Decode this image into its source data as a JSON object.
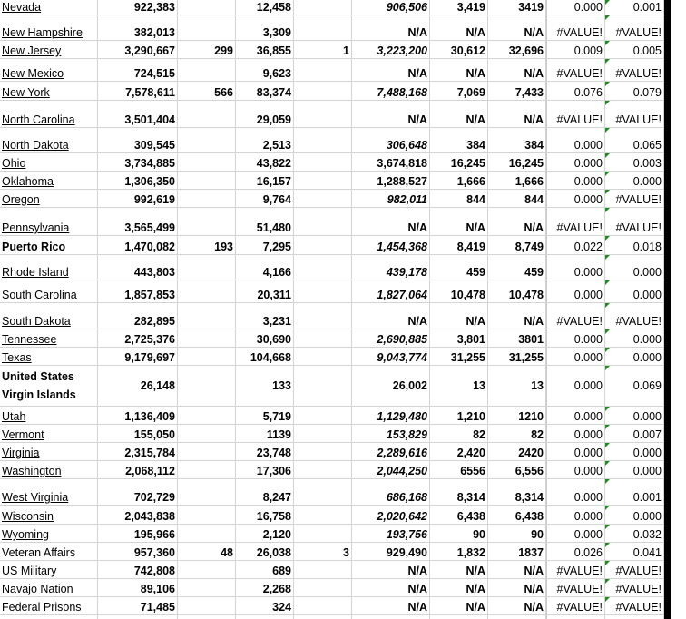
{
  "sheet": {
    "rows": [
      [
        "Nevada",
        "922,383",
        "",
        "12,458",
        "",
        "906,506",
        "3,419",
        "3419",
        "0.000",
        "0.001"
      ],
      [
        "New Hampshire",
        "382,013",
        "",
        "3,309",
        "",
        "N/A",
        "N/A",
        "N/A",
        "#VALUE!",
        "#VALUE!"
      ],
      [
        "New Jersey",
        "3,290,667",
        "299",
        "36,855",
        "1",
        "3,223,200",
        "30,612",
        "32,696",
        "0.009",
        "0.005"
      ],
      [
        "New Mexico",
        "724,515",
        "",
        "9,623",
        "",
        "N/A",
        "N/A",
        "N/A",
        "#VALUE!",
        "#VALUE!"
      ],
      [
        "New York",
        "7,578,611",
        "566",
        "83,374",
        "",
        "7,488,168",
        "7,069",
        "7,433",
        "0.076",
        "0.079"
      ],
      [
        "North Carolina",
        "3,501,404",
        "",
        "29,059",
        "",
        "N/A",
        "N/A",
        "N/A",
        "#VALUE!",
        "#VALUE!"
      ],
      [
        "North Dakota",
        "309,545",
        "",
        "2,513",
        "",
        "306,648",
        "384",
        "384",
        "0.000",
        "0.065"
      ],
      [
        "Ohio",
        "3,734,885",
        "",
        "43,822",
        "",
        "3,674,818",
        "16,245",
        "16,245",
        "0.000",
        "0.003"
      ],
      [
        "Oklahoma",
        "1,306,350",
        "",
        "16,157",
        "",
        "1,288,527",
        "1,666",
        "1,666",
        "0.000",
        "0.000"
      ],
      [
        "Oregon",
        "992,619",
        "",
        "9,764",
        "",
        "982,011",
        "844",
        "844",
        "0.000",
        "#VALUE!"
      ],
      [
        "Pennsylvania",
        "3,565,499",
        "",
        "51,480",
        "",
        "N/A",
        "N/A",
        "N/A",
        "#VALUE!",
        "#VALUE!"
      ],
      [
        "Puerto Rico",
        "1,470,082",
        "193",
        "7,295",
        "",
        "1,454,368",
        "8,419",
        "8,749",
        "0.022",
        "0.018"
      ],
      [
        "Rhode Island",
        "443,803",
        "",
        "4,166",
        "",
        "439,178",
        "459",
        "459",
        "0.000",
        "0.000"
      ],
      [
        "South Carolina",
        "1,857,853",
        "",
        "20,311",
        "",
        "1,827,064",
        "10,478",
        "10,478",
        "0.000",
        "0.000"
      ],
      [
        "South Dakota",
        "282,895",
        "",
        "3,231",
        "",
        "N/A",
        "N/A",
        "N/A",
        "#VALUE!",
        "#VALUE!"
      ],
      [
        "Tennessee",
        "2,725,376",
        "",
        "30,690",
        "",
        "2,690,885",
        "3,801",
        "3801",
        "0.000",
        "0.000"
      ],
      [
        "Texas",
        "9,179,697",
        "",
        "104,668",
        "",
        "9,043,774",
        "31,255",
        "31,255",
        "0.000",
        "0.000"
      ],
      [
        "United States Virgin Islands",
        "26,148",
        "",
        "133",
        "",
        "26,002",
        "13",
        "13",
        "0.000",
        "0.069"
      ],
      [
        "Utah",
        "1,136,409",
        "",
        "5,719",
        "",
        "1,129,480",
        "1,210",
        "1210",
        "0.000",
        "0.000"
      ],
      [
        "Vermont",
        "155,050",
        "",
        "1139",
        "",
        "153,829",
        "82",
        "82",
        "0.000",
        "0.007"
      ],
      [
        "Virginia",
        "2,315,784",
        "",
        "23,748",
        "",
        "2,289,616",
        "2,420",
        "2420",
        "0.000",
        "0.000"
      ],
      [
        "Washington",
        "2,068,112",
        "",
        "17,306",
        "",
        "2,044,250",
        "6556",
        "6,556",
        "0.000",
        "0.000"
      ],
      [
        "West Virginia",
        "702,729",
        "",
        "8,247",
        "",
        "686,168",
        "8,314",
        "8,314",
        "0.000",
        "0.001"
      ],
      [
        "Wisconsin",
        "2,043,838",
        "",
        "16,758",
        "",
        "2,020,642",
        "6,438",
        "6,438",
        "0.000",
        "0.000"
      ],
      [
        "Wyoming",
        "195,966",
        "",
        "2,120",
        "",
        "193,756",
        "90",
        "90",
        "0.000",
        "0.032"
      ],
      [
        "Veteran Affairs",
        "957,360",
        "48",
        "26,038",
        "3",
        "929,490",
        "1,832",
        "1837",
        "0.026",
        "0.041"
      ],
      [
        "US Military",
        "742,808",
        "",
        "689",
        "",
        "N/A",
        "N/A",
        "N/A",
        "#VALUE!",
        "#VALUE!"
      ],
      [
        "Navajo Nation",
        "89,106",
        "",
        "2,268",
        "",
        "N/A",
        "N/A",
        "N/A",
        "#VALUE!",
        "#VALUE!"
      ],
      [
        "Federal Prisons",
        "71,485",
        "",
        "324",
        "",
        "N/A",
        "N/A",
        "N/A",
        "#VALUE!",
        "#VALUE!"
      ]
    ],
    "error_indicator_color": "#1e8c1e"
  }
}
